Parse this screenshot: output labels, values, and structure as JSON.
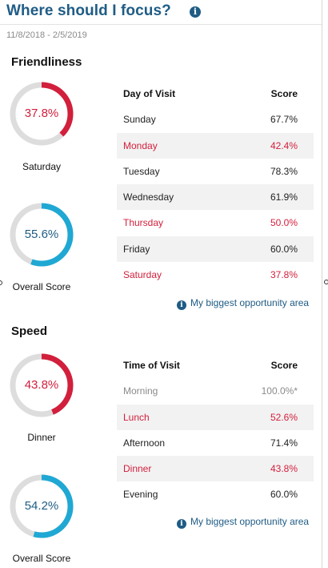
{
  "header": {
    "title": "Where should I focus?",
    "info_icon": "info-circle-icon"
  },
  "date_range": "11/8/2018 - 2/5/2019",
  "colors": {
    "accent_blue": "#1f5c85",
    "alert_red": "#d21f3c",
    "ring_blue": "#1fa8d3",
    "ring_track": "#dddddd"
  },
  "friendliness": {
    "title": "Friendliness",
    "worst": {
      "value": "37.8%",
      "fraction": 0.378,
      "label": "Saturday"
    },
    "overall": {
      "value": "55.6%",
      "fraction": 0.556,
      "label": "Overall Score"
    },
    "table": {
      "headers": [
        "Day of Visit",
        "Score"
      ],
      "rows": [
        {
          "label": "Sunday",
          "score": "67.7%",
          "flag": "normal"
        },
        {
          "label": "Monday",
          "score": "42.4%",
          "flag": "red"
        },
        {
          "label": "Tuesday",
          "score": "78.3%",
          "flag": "normal"
        },
        {
          "label": "Wednesday",
          "score": "61.9%",
          "flag": "normal"
        },
        {
          "label": "Thursday",
          "score": "50.0%",
          "flag": "red"
        },
        {
          "label": "Friday",
          "score": "60.0%",
          "flag": "normal"
        },
        {
          "label": "Saturday",
          "score": "37.8%",
          "flag": "red"
        }
      ]
    },
    "link": "My biggest opportunity area"
  },
  "speed": {
    "title": "Speed",
    "worst": {
      "value": "43.8%",
      "fraction": 0.438,
      "label": "Dinner"
    },
    "overall": {
      "value": "54.2%",
      "fraction": 0.542,
      "label": "Overall Score"
    },
    "table": {
      "headers": [
        "Time of Visit",
        "Score"
      ],
      "rows": [
        {
          "label": "Morning",
          "score": "100.0%*",
          "flag": "gray"
        },
        {
          "label": "Lunch",
          "score": "52.6%",
          "flag": "red"
        },
        {
          "label": "Afternoon",
          "score": "71.4%",
          "flag": "normal"
        },
        {
          "label": "Dinner",
          "score": "43.8%",
          "flag": "red"
        },
        {
          "label": "Evening",
          "score": "60.0%",
          "flag": "normal"
        }
      ]
    },
    "link": "My biggest opportunity area"
  }
}
